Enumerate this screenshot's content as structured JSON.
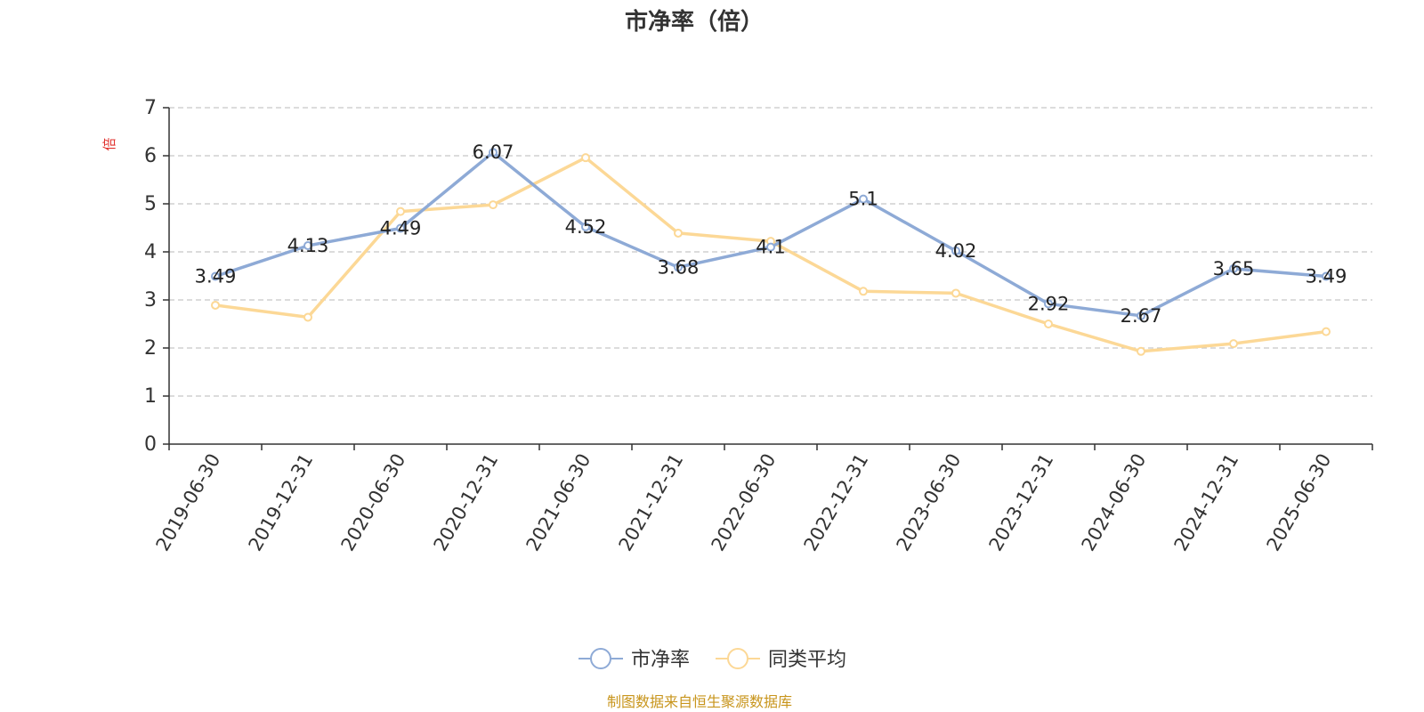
{
  "chart_data": {
    "type": "line",
    "title": "市净率（倍）",
    "ylabel": "倍",
    "ylim": [
      0,
      7
    ],
    "yticks": [
      0,
      1,
      2,
      3,
      4,
      5,
      6,
      7
    ],
    "grid": true,
    "legend_position": "bottom",
    "categories": [
      "2019-06-30",
      "2019-12-31",
      "2020-06-30",
      "2020-12-31",
      "2021-06-30",
      "2021-12-31",
      "2022-06-30",
      "2022-12-31",
      "2023-06-30",
      "2023-12-31",
      "2024-06-30",
      "2024-12-31",
      "2025-06-30"
    ],
    "series": [
      {
        "name": "市净率",
        "color": "#8eaad6",
        "values": [
          3.49,
          4.13,
          4.49,
          6.07,
          4.52,
          3.68,
          4.1,
          5.1,
          4.02,
          2.92,
          2.67,
          3.65,
          3.49
        ],
        "labels": [
          "3.49",
          "4.13",
          "4.49",
          "6.07",
          "4.52",
          "3.68",
          "4.1",
          "5.1",
          "4.02",
          "2.92",
          "2.67",
          "3.65",
          "3.49"
        ]
      },
      {
        "name": "同类平均",
        "color": "#fcd896",
        "values": [
          2.89,
          2.64,
          4.84,
          4.98,
          5.96,
          4.39,
          4.22,
          3.18,
          3.14,
          2.5,
          1.93,
          2.09,
          2.34
        ]
      }
    ]
  },
  "footer": {
    "source": "制图数据来自恒生聚源数据库"
  }
}
